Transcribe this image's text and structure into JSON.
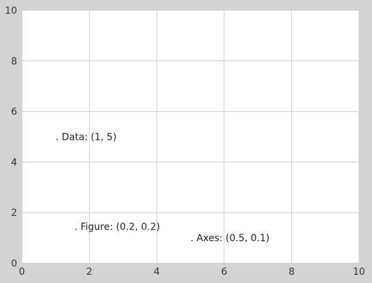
{
  "chart_data": {
    "type": "scatter",
    "title": "",
    "xlabel": "",
    "ylabel": "",
    "xlim": [
      0,
      10
    ],
    "ylim": [
      0,
      10
    ],
    "grid": true,
    "xticks": [
      "0",
      "2",
      "4",
      "6",
      "8",
      "10"
    ],
    "yticks": [
      "0",
      "2",
      "4",
      "6",
      "8",
      "10"
    ],
    "annotations": [
      {
        "text": ". Data: (1, 5)",
        "coord_system": "data",
        "x": 1,
        "y": 5
      },
      {
        "text": ". Axes: (0.5, 0.1)",
        "coord_system": "axes",
        "x": 0.5,
        "y": 0.1
      },
      {
        "text": ". Figure: (0.2, 0.2)",
        "coord_system": "figure",
        "x": 0.2,
        "y": 0.2
      }
    ]
  },
  "colors": {
    "figure_background": "#d3d3d3",
    "axes_background": "#ffffff",
    "grid": "#cccccc",
    "text": "#222222"
  }
}
